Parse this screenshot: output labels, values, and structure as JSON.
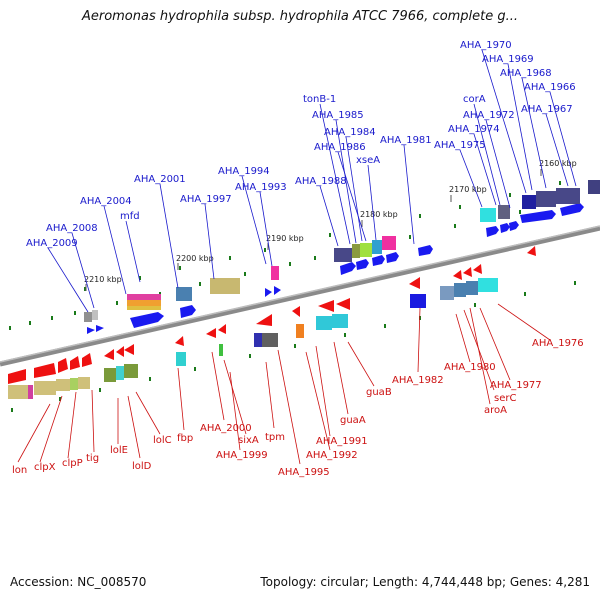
{
  "title": "Aeromonas hydrophila subsp. hydrophila ATCC 7966, complete g...",
  "footer": {
    "accession": "Accession: NC_008570",
    "topology": "Topology: circular; Length: 4,744,448 bp; Genes: 4,281"
  },
  "colors": {
    "forward_label": "#1a1acc",
    "reverse_label": "#cc1111",
    "backbone": "#8c8c8c"
  },
  "kbp_ticks": [
    "2210 kbp",
    "2200 kbp",
    "2190 kbp",
    "2180 kbp",
    "2170 kbp",
    "2160 kbp"
  ],
  "forward_labels": [
    "AHA_2009",
    "AHA_2008",
    "AHA_2004",
    "mfd",
    "AHA_2001",
    "AHA_1997",
    "AHA_1994",
    "AHA_1993",
    "AHA_1988",
    "tonB-1",
    "AHA_1985",
    "AHA_1984",
    "AHA_1986",
    "xseA",
    "AHA_1981",
    "corA",
    "AHA_1972",
    "AHA_1974",
    "AHA_1975",
    "AHA_1970",
    "AHA_1969",
    "AHA_1968",
    "AHA_1966",
    "AHA_1967"
  ],
  "reverse_labels": [
    "lon",
    "clpX",
    "clpP",
    "tig",
    "lolE",
    "lolD",
    "lolC",
    "fbp",
    "AHA_2000",
    "sixA",
    "AHA_1999",
    "tpm",
    "AHA_1995",
    "AHA_1992",
    "AHA_1991",
    "guaA",
    "guaB",
    "AHA_1982",
    "AHA_1980",
    "serC",
    "aroA",
    "AHA_1977",
    "AHA_1976"
  ]
}
